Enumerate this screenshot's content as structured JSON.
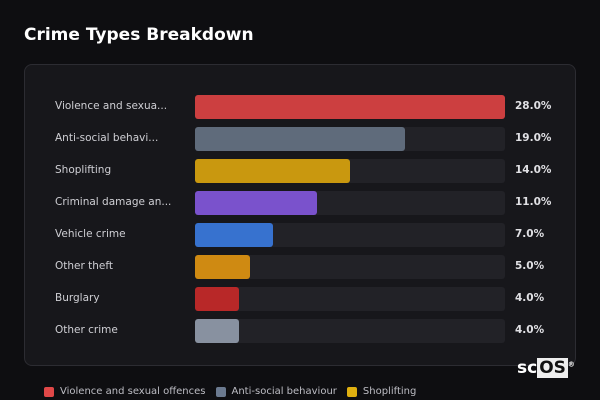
{
  "chart_data": {
    "type": "bar",
    "orientation": "horizontal",
    "title": "Crime Types Breakdown",
    "categories": [
      "Violence and sexua...",
      "Anti-social behavi...",
      "Shoplifting",
      "Criminal damage an...",
      "Vehicle crime",
      "Other theft",
      "Burglary",
      "Other crime"
    ],
    "values": [
      28.0,
      19.0,
      14.0,
      11.0,
      7.0,
      5.0,
      4.0,
      4.0
    ],
    "value_labels": [
      "28.0%",
      "19.0%",
      "14.0%",
      "11.0%",
      "7.0%",
      "5.0%",
      "4.0%",
      "4.0%"
    ],
    "colors": [
      "#cc3f40",
      "#5f6b7b",
      "#c9980f",
      "#7a52cc",
      "#3772cf",
      "#cf8a12",
      "#b82828",
      "#8891a0"
    ],
    "xlim": [
      0,
      28
    ],
    "grid": false,
    "legend_position": "bottom",
    "legend": [
      {
        "label": "Violence and sexual offences",
        "color": "#e04848"
      },
      {
        "label": "Anti-social behaviour",
        "color": "#6b7a90"
      },
      {
        "label": "Shoplifting",
        "color": "#e0b010"
      }
    ]
  },
  "logo": {
    "text_a": "sc",
    "text_b": "OS",
    "mark": "®"
  }
}
